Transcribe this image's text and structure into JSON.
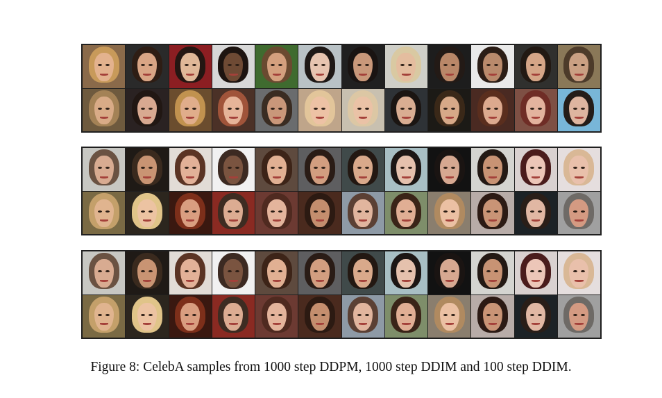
{
  "figure": {
    "caption": "Figure 8: CelebA samples from 1000 step DDPM, 1000 step DDIM and 100 step DDIM.",
    "dataset": "CelebA",
    "grids": [
      {
        "name": "1000 step DDPM",
        "rows": 2,
        "cols": 12,
        "faces": [
          {
            "bg": "#8a6a4a",
            "hair": "#c89a5a",
            "skin": "#e3b28e"
          },
          {
            "bg": "#2a2a2a",
            "hair": "#2e1d14",
            "skin": "#d9a585"
          },
          {
            "bg": "#8c1e22",
            "hair": "#241612",
            "skin": "#e0b898"
          },
          {
            "bg": "#d8d8d8",
            "hair": "#1d1410",
            "skin": "#6e4a34"
          },
          {
            "bg": "#3f6b2f",
            "hair": "#6a4a30",
            "skin": "#d4a07e"
          },
          {
            "bg": "#b9c2c6",
            "hair": "#1e1816",
            "skin": "#e7c4b0"
          },
          {
            "bg": "#202020",
            "hair": "#1a1412",
            "skin": "#c9987a"
          },
          {
            "bg": "#cfcfc8",
            "hair": "#d9c9a2",
            "skin": "#e4bd9f"
          },
          {
            "bg": "#1d1d1d",
            "hair": "#231a16",
            "skin": "#b98768"
          },
          {
            "bg": "#e9e9e9",
            "hair": "#2b1d16",
            "skin": "#b98a6c"
          },
          {
            "bg": "#30302e",
            "hair": "#221913",
            "skin": "#d5a587"
          },
          {
            "bg": "#8a7858",
            "hair": "#4d3b2a",
            "skin": "#caa083"
          },
          {
            "bg": "#6e5a3e",
            "hair": "#a48256",
            "skin": "#d9ab87"
          },
          {
            "bg": "#2a2222",
            "hair": "#211713",
            "skin": "#d8a991"
          },
          {
            "bg": "#6b4d2e",
            "hair": "#c1924f",
            "skin": "#e0ad8b"
          },
          {
            "bg": "#4b3127",
            "hair": "#a0543a",
            "skin": "#e6b499"
          },
          {
            "bg": "#6a6c6e",
            "hair": "#3a2c22",
            "skin": "#c9977a"
          },
          {
            "bg": "#bfa58a",
            "hair": "#e2c59a",
            "skin": "#edc2a5"
          },
          {
            "bg": "#c8c0b0",
            "hair": "#dcc7a4",
            "skin": "#eac2a6"
          },
          {
            "bg": "#2e3236",
            "hair": "#1b1512",
            "skin": "#d9ad92"
          },
          {
            "bg": "#1c1a16",
            "hair": "#3a2818",
            "skin": "#d7a988"
          },
          {
            "bg": "#4a2a22",
            "hair": "#5a2e1e",
            "skin": "#dca98e"
          },
          {
            "bg": "#7e5044",
            "hair": "#6f2d26",
            "skin": "#e3b39e"
          },
          {
            "bg": "#78b6d8",
            "hair": "#241c18",
            "skin": "#deb5a0"
          }
        ]
      },
      {
        "name": "1000 step DDIM",
        "rows": 2,
        "cols": 12,
        "faces": [
          {
            "bg": "#c7c7c2",
            "hair": "#6a5242",
            "skin": "#d8ab91"
          },
          {
            "bg": "#1f1a16",
            "hair": "#3a2a1e",
            "skin": "#c99473"
          },
          {
            "bg": "#e2dcd6",
            "hair": "#5b3424",
            "skin": "#e2b198"
          },
          {
            "bg": "#f1f1f1",
            "hair": "#3c2a22",
            "skin": "#7a5440"
          },
          {
            "bg": "#5e4a3e",
            "hair": "#3d2418",
            "skin": "#e1b093"
          },
          {
            "bg": "#5e5e60",
            "hair": "#2a1c16",
            "skin": "#d29e80"
          },
          {
            "bg": "#404a4a",
            "hair": "#231812",
            "skin": "#d9a98b"
          },
          {
            "bg": "#a8bfc4",
            "hair": "#1c1614",
            "skin": "#e5c1ad"
          },
          {
            "bg": "#121212",
            "hair": "#1a1412",
            "skin": "#d6a891"
          },
          {
            "bg": "#d4d4d0",
            "hair": "#231914",
            "skin": "#c89374"
          },
          {
            "bg": "#d9d1d0",
            "hair": "#4a1c1c",
            "skin": "#ecc6b8"
          },
          {
            "bg": "#e5dede",
            "hair": "#d9b896",
            "skin": "#e9c0ab"
          },
          {
            "bg": "#7a6a44",
            "hair": "#c4a06a",
            "skin": "#e0b48f"
          },
          {
            "bg": "#2c261e",
            "hair": "#e0c489",
            "skin": "#ecc3a2"
          },
          {
            "bg": "#3a1810",
            "hair": "#7d2f1a",
            "skin": "#d99e80"
          },
          {
            "bg": "#8a2a22",
            "hair": "#3d2c22",
            "skin": "#dcac92"
          },
          {
            "bg": "#6c3a32",
            "hair": "#4f2a20",
            "skin": "#e4b49c"
          },
          {
            "bg": "#4a2a1e",
            "hair": "#2c1a12",
            "skin": "#c48e6e"
          },
          {
            "bg": "#8e9aa6",
            "hair": "#5b4034",
            "skin": "#e1b59e"
          },
          {
            "bg": "#7e8e6a",
            "hair": "#3a2418",
            "skin": "#e0ae94"
          },
          {
            "bg": "#8a7e6e",
            "hair": "#b08a60",
            "skin": "#ebc0a3"
          },
          {
            "bg": "#b8aca8",
            "hair": "#2c1a14",
            "skin": "#c99476"
          },
          {
            "bg": "#1c2226",
            "hair": "#2a1e18",
            "skin": "#e1b7a3"
          },
          {
            "bg": "#a0a0a0",
            "hair": "#6e6a66",
            "skin": "#d49a82"
          }
        ]
      },
      {
        "name": "100 step DDIM",
        "rows": 2,
        "cols": 12,
        "faces": [
          {
            "bg": "#c7c7c2",
            "hair": "#6a5242",
            "skin": "#d8ab91"
          },
          {
            "bg": "#1f1a16",
            "hair": "#3a2a1e",
            "skin": "#c99473"
          },
          {
            "bg": "#e2dcd6",
            "hair": "#5b3424",
            "skin": "#e2b198"
          },
          {
            "bg": "#f1f1f1",
            "hair": "#3c2a22",
            "skin": "#7a5440"
          },
          {
            "bg": "#5e4a3e",
            "hair": "#3d2418",
            "skin": "#e1b093"
          },
          {
            "bg": "#5e5e60",
            "hair": "#2a1c16",
            "skin": "#d29e80"
          },
          {
            "bg": "#404a4a",
            "hair": "#231812",
            "skin": "#d9a98b"
          },
          {
            "bg": "#a8bfc4",
            "hair": "#1c1614",
            "skin": "#e5c1ad"
          },
          {
            "bg": "#121212",
            "hair": "#1a1412",
            "skin": "#d6a891"
          },
          {
            "bg": "#d4d4d0",
            "hair": "#231914",
            "skin": "#c89374"
          },
          {
            "bg": "#d9d1d0",
            "hair": "#4a1c1c",
            "skin": "#ecc6b8"
          },
          {
            "bg": "#e5dede",
            "hair": "#d9b896",
            "skin": "#e9c0ab"
          },
          {
            "bg": "#7a6a44",
            "hair": "#c4a06a",
            "skin": "#e0b48f"
          },
          {
            "bg": "#2c261e",
            "hair": "#e0c489",
            "skin": "#ecc3a2"
          },
          {
            "bg": "#3a1810",
            "hair": "#7d2f1a",
            "skin": "#d99e80"
          },
          {
            "bg": "#8a2a22",
            "hair": "#3d2c22",
            "skin": "#dcac92"
          },
          {
            "bg": "#6c3a32",
            "hair": "#4f2a20",
            "skin": "#e4b49c"
          },
          {
            "bg": "#4a2a1e",
            "hair": "#2c1a12",
            "skin": "#c48e6e"
          },
          {
            "bg": "#8e9aa6",
            "hair": "#5b4034",
            "skin": "#e1b59e"
          },
          {
            "bg": "#7e8e6a",
            "hair": "#3a2418",
            "skin": "#e0ae94"
          },
          {
            "bg": "#8a7e6e",
            "hair": "#b08a60",
            "skin": "#ebc0a3"
          },
          {
            "bg": "#b8aca8",
            "hair": "#2c1a14",
            "skin": "#c99476"
          },
          {
            "bg": "#1c2226",
            "hair": "#2a1e18",
            "skin": "#e1b7a3"
          },
          {
            "bg": "#a0a0a0",
            "hair": "#6e6a66",
            "skin": "#d49a82"
          }
        ]
      }
    ]
  }
}
